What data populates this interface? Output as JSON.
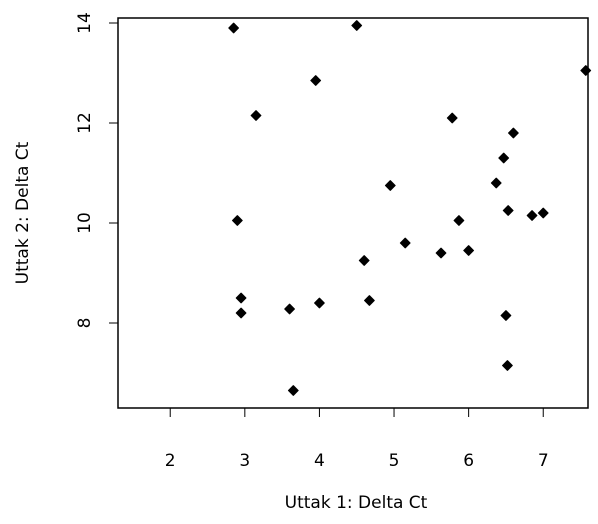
{
  "chart_data": {
    "type": "scatter",
    "xlabel": "Uttak 1: Delta Ct",
    "ylabel": "Uttak 2: Delta Ct",
    "xlim": [
      1.3,
      7.6
    ],
    "ylim": [
      6.3,
      14.1
    ],
    "x_ticks": [
      2,
      3,
      4,
      5,
      6,
      7
    ],
    "y_ticks": [
      8,
      10,
      12,
      14
    ],
    "grid": false,
    "point_color": "#000000",
    "points": [
      {
        "x": 2.85,
        "y": 13.9
      },
      {
        "x": 4.5,
        "y": 13.95
      },
      {
        "x": 7.57,
        "y": 13.05
      },
      {
        "x": 3.95,
        "y": 12.85
      },
      {
        "x": 3.15,
        "y": 12.15
      },
      {
        "x": 5.78,
        "y": 12.1
      },
      {
        "x": 6.6,
        "y": 11.8
      },
      {
        "x": 6.47,
        "y": 11.3
      },
      {
        "x": 6.37,
        "y": 10.8
      },
      {
        "x": 4.95,
        "y": 10.75
      },
      {
        "x": 6.53,
        "y": 10.25
      },
      {
        "x": 7.0,
        "y": 10.2
      },
      {
        "x": 6.85,
        "y": 10.15
      },
      {
        "x": 2.9,
        "y": 10.05
      },
      {
        "x": 5.87,
        "y": 10.05
      },
      {
        "x": 5.15,
        "y": 9.6
      },
      {
        "x": 6.0,
        "y": 9.45
      },
      {
        "x": 5.63,
        "y": 9.4
      },
      {
        "x": 4.6,
        "y": 9.25
      },
      {
        "x": 2.95,
        "y": 8.5
      },
      {
        "x": 4.67,
        "y": 8.45
      },
      {
        "x": 4.0,
        "y": 8.4
      },
      {
        "x": 3.6,
        "y": 8.28
      },
      {
        "x": 2.95,
        "y": 8.2
      },
      {
        "x": 6.5,
        "y": 8.15
      },
      {
        "x": 6.52,
        "y": 7.15
      },
      {
        "x": 3.65,
        "y": 6.65
      }
    ]
  }
}
